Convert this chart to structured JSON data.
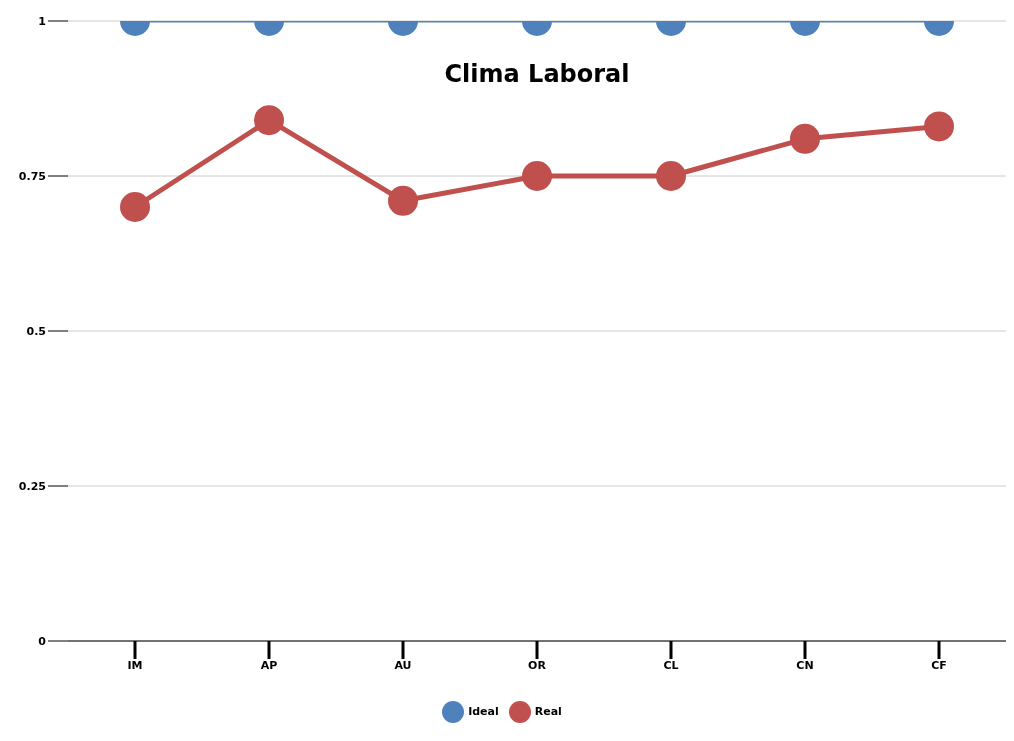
{
  "chart_data": {
    "type": "line",
    "title": "Clima Laboral",
    "categories": [
      "IM",
      "AP",
      "AU",
      "OR",
      "CL",
      "CN",
      "CF"
    ],
    "series": [
      {
        "name": "Ideal",
        "color": "#4f81bd",
        "values": [
          1,
          1,
          1,
          1,
          1,
          1,
          1
        ]
      },
      {
        "name": "Real",
        "color": "#c0504d",
        "values": [
          0.7,
          0.84,
          0.71,
          0.75,
          0.75,
          0.81,
          0.83
        ]
      }
    ],
    "ylim": [
      0,
      1
    ],
    "yticks": [
      0,
      0.25,
      0.5,
      0.75,
      1
    ],
    "grid": "y",
    "legend": "bottom",
    "marker": "circle",
    "line_style": "solid"
  }
}
